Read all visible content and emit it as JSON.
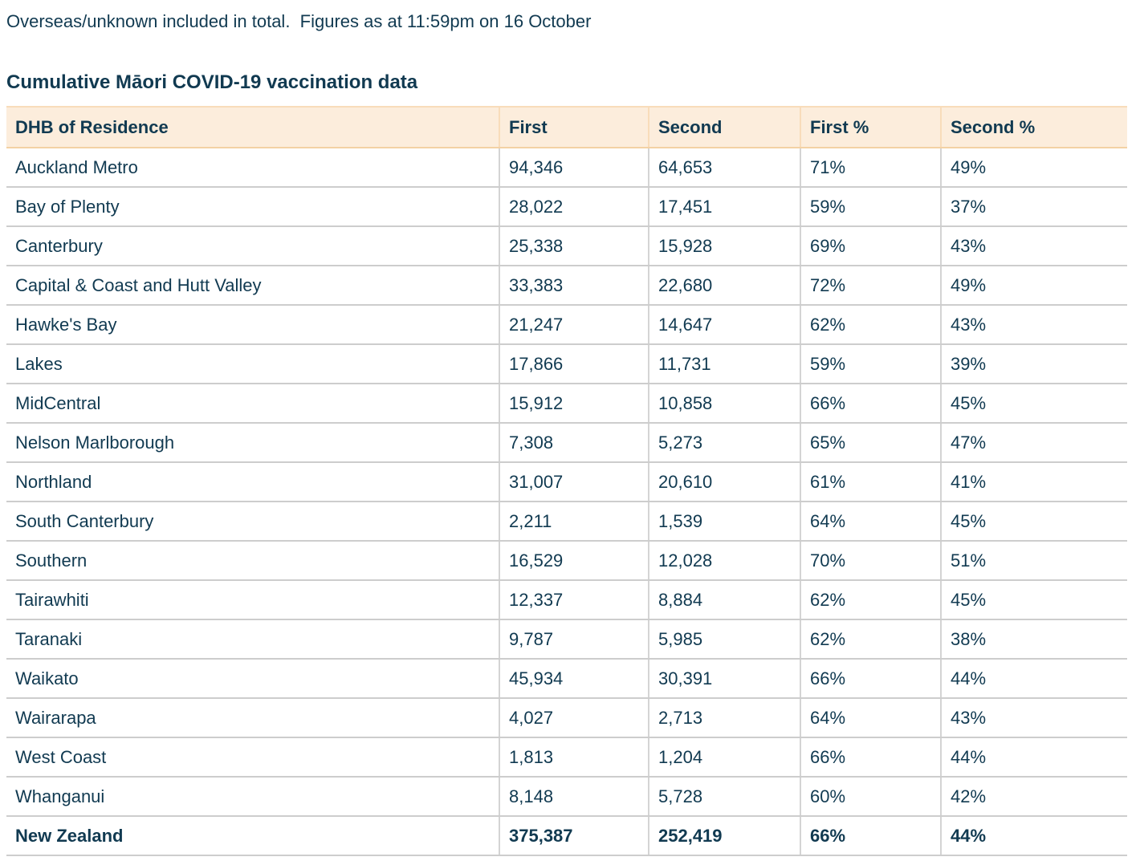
{
  "page": {
    "note": "Overseas/unknown included in total.  Figures as at 11:59pm on 16 October",
    "title": "Cumulative Māori COVID-19 vaccination data"
  },
  "colors": {
    "text_navy": "#113a51",
    "header_bg": "#fceddc",
    "header_border": "#f8dcba",
    "header_bottom_border": "#f3d1a4",
    "row_border": "#cdcdcd",
    "col_border": "#d4d4d4",
    "page_bg": "#ffffff"
  },
  "table": {
    "columns": [
      "DHB of Residence",
      "First",
      "Second",
      "First %",
      "Second %"
    ],
    "rows": [
      {
        "dhb": "Auckland Metro",
        "first": "94,346",
        "second": "64,653",
        "first_pct": "71%",
        "second_pct": "49%"
      },
      {
        "dhb": "Bay of Plenty",
        "first": "28,022",
        "second": "17,451",
        "first_pct": "59%",
        "second_pct": "37%"
      },
      {
        "dhb": "Canterbury",
        "first": "25,338",
        "second": "15,928",
        "first_pct": "69%",
        "second_pct": "43%"
      },
      {
        "dhb": "Capital & Coast and Hutt Valley",
        "first": "33,383",
        "second": "22,680",
        "first_pct": "72%",
        "second_pct": "49%"
      },
      {
        "dhb": "Hawke's Bay",
        "first": "21,247",
        "second": "14,647",
        "first_pct": "62%",
        "second_pct": "43%"
      },
      {
        "dhb": "Lakes",
        "first": "17,866",
        "second": "11,731",
        "first_pct": "59%",
        "second_pct": "39%"
      },
      {
        "dhb": "MidCentral",
        "first": "15,912",
        "second": "10,858",
        "first_pct": "66%",
        "second_pct": "45%"
      },
      {
        "dhb": "Nelson Marlborough",
        "first": "7,308",
        "second": "5,273",
        "first_pct": "65%",
        "second_pct": "47%"
      },
      {
        "dhb": "Northland",
        "first": "31,007",
        "second": "20,610",
        "first_pct": "61%",
        "second_pct": "41%"
      },
      {
        "dhb": "South Canterbury",
        "first": "2,211",
        "second": "1,539",
        "first_pct": "64%",
        "second_pct": "45%"
      },
      {
        "dhb": "Southern",
        "first": "16,529",
        "second": "12,028",
        "first_pct": "70%",
        "second_pct": "51%"
      },
      {
        "dhb": "Tairawhiti",
        "first": "12,337",
        "second": "8,884",
        "first_pct": "62%",
        "second_pct": "45%"
      },
      {
        "dhb": "Taranaki",
        "first": "9,787",
        "second": "5,985",
        "first_pct": "62%",
        "second_pct": "38%"
      },
      {
        "dhb": "Waikato",
        "first": "45,934",
        "second": "30,391",
        "first_pct": "66%",
        "second_pct": "44%"
      },
      {
        "dhb": "Wairarapa",
        "first": "4,027",
        "second": "2,713",
        "first_pct": "64%",
        "second_pct": "43%"
      },
      {
        "dhb": "West Coast",
        "first": "1,813",
        "second": "1,204",
        "first_pct": "66%",
        "second_pct": "44%"
      },
      {
        "dhb": "Whanganui",
        "first": "8,148",
        "second": "5,728",
        "first_pct": "60%",
        "second_pct": "42%"
      }
    ],
    "total_row": {
      "dhb": "New Zealand",
      "first": "375,387",
      "second": "252,419",
      "first_pct": "66%",
      "second_pct": "44%"
    }
  }
}
